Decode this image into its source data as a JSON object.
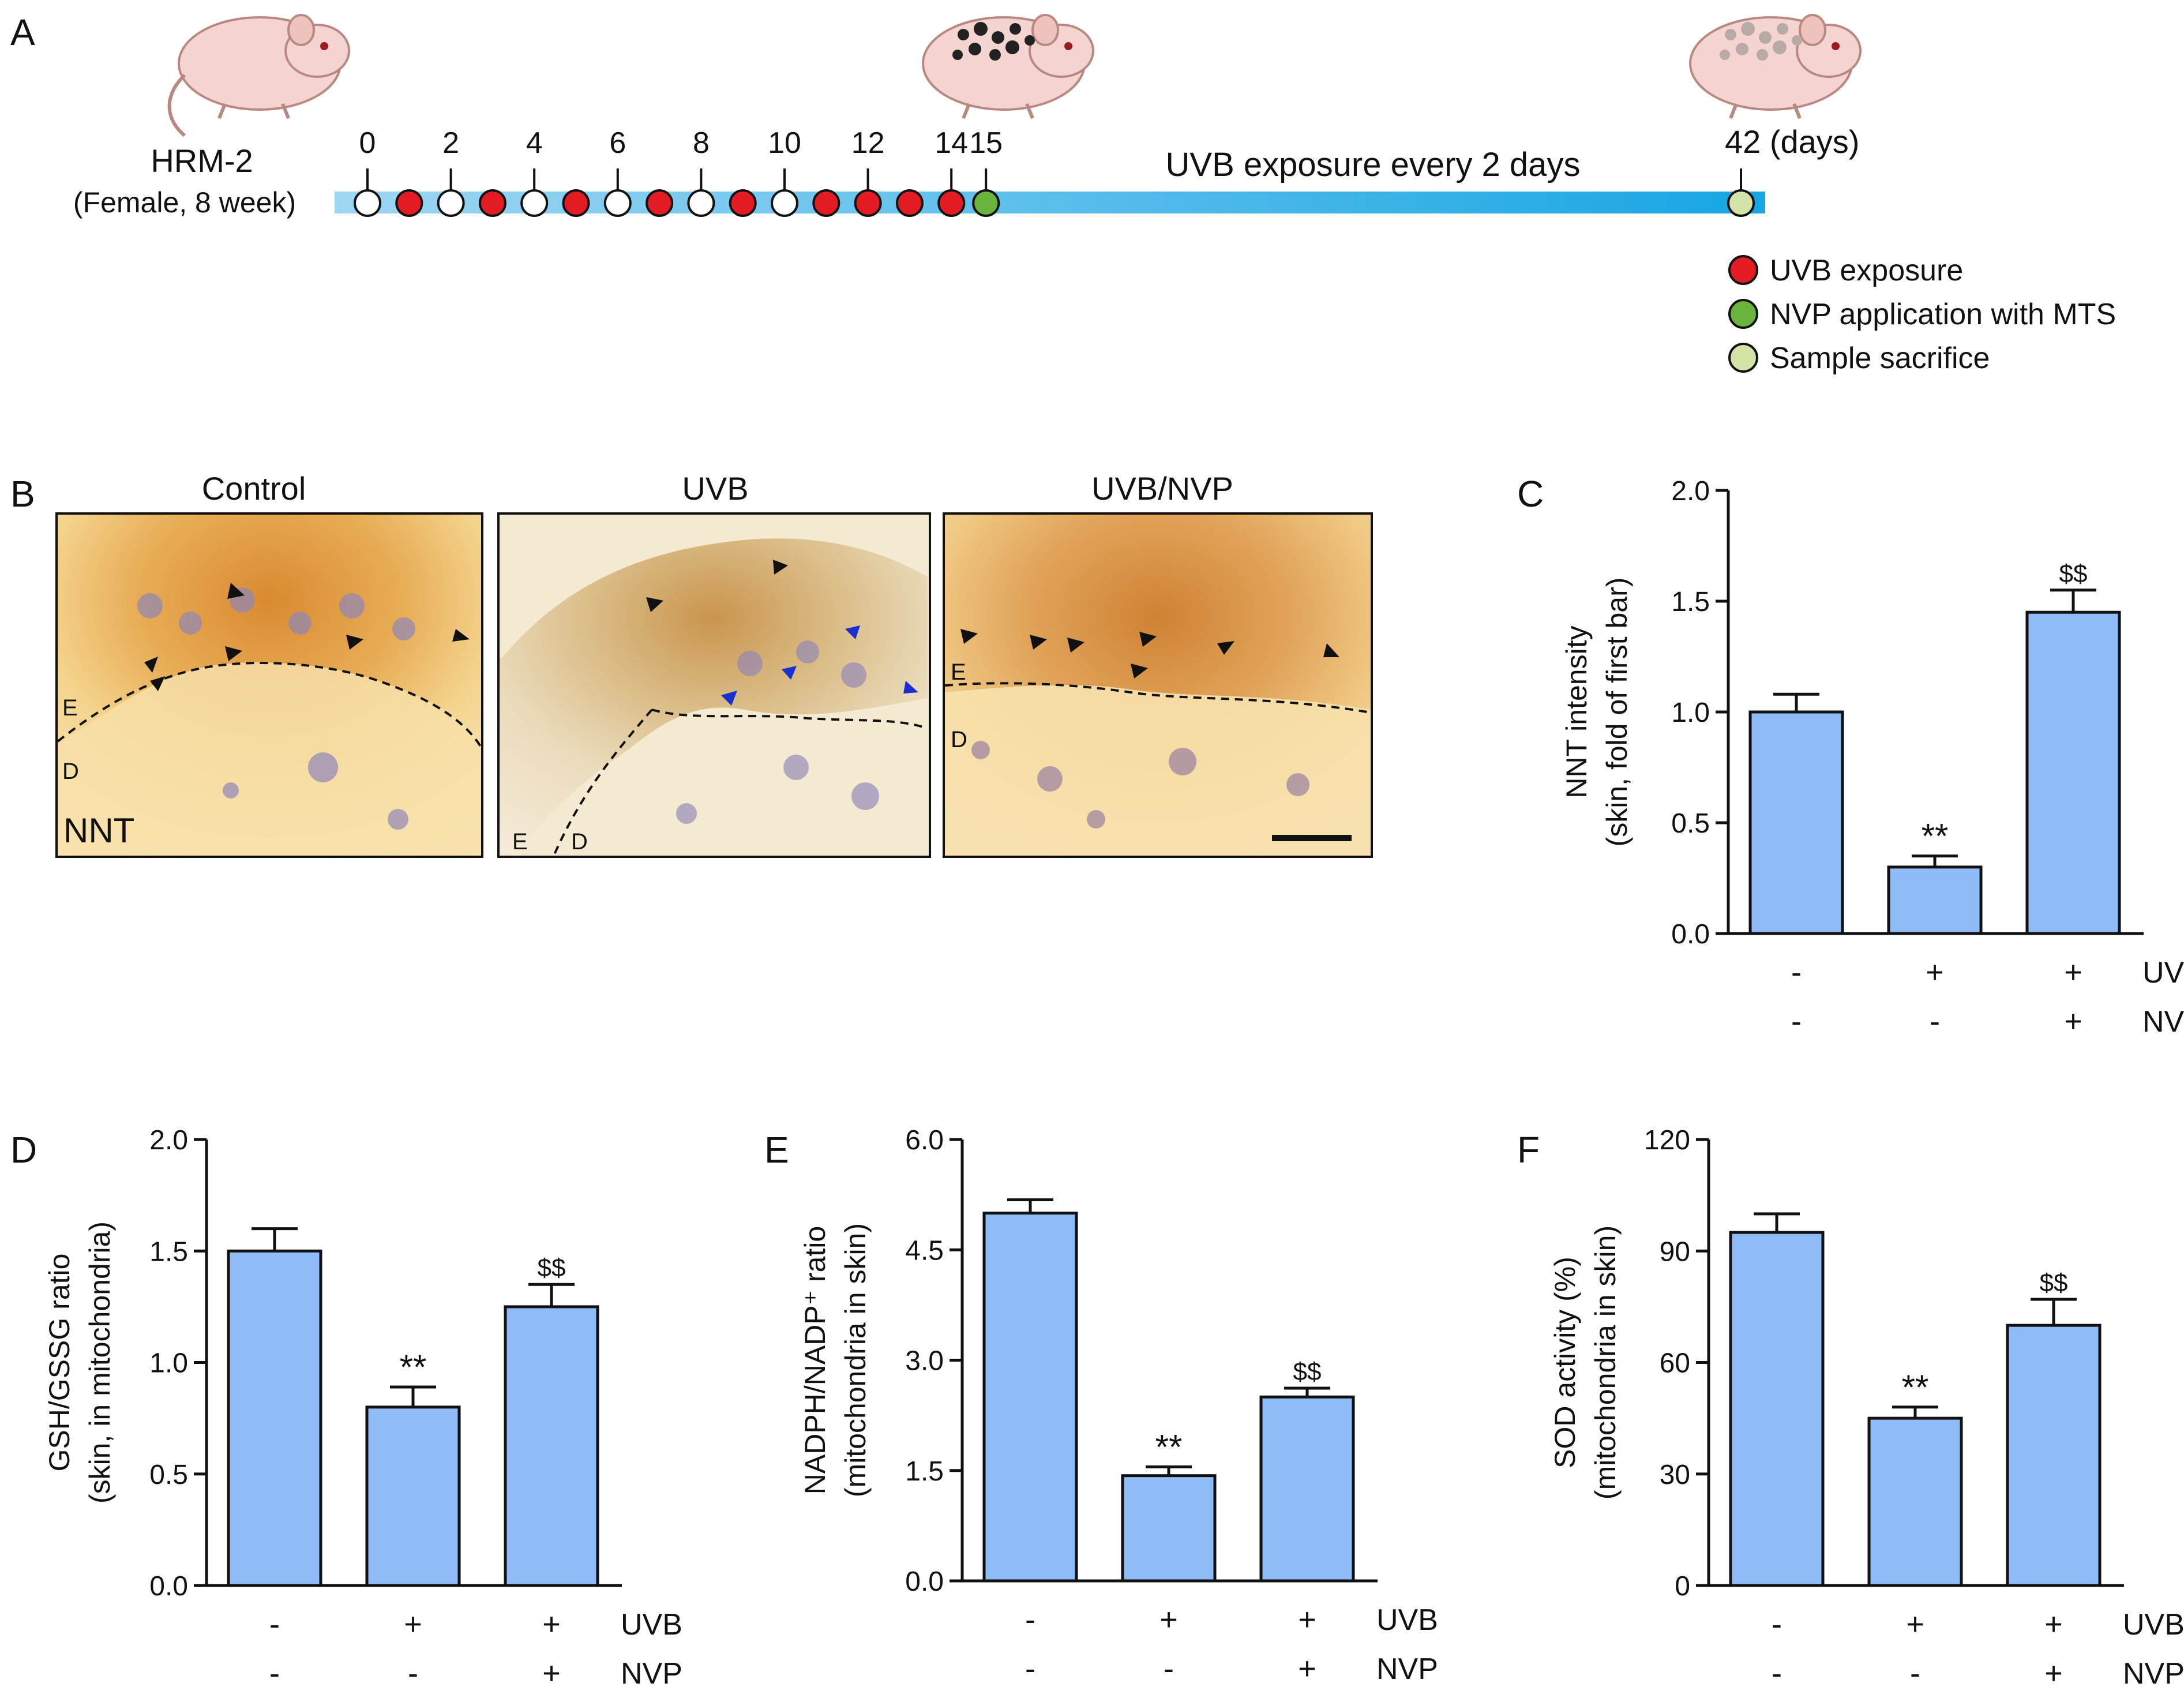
{
  "panel_labels": {
    "A": "A",
    "B": "B",
    "C": "C",
    "D": "D",
    "E": "E",
    "F": "F"
  },
  "timeline": {
    "strain": "HRM-2",
    "strain_detail": "(Female, 8 week)",
    "day_ticks": [
      "0",
      "2",
      "4",
      "6",
      "8",
      "10",
      "12",
      "14",
      "15"
    ],
    "end_day": "42 (days)",
    "exposure_note": "UVB exposure every 2 days",
    "legend": [
      {
        "label": "UVB exposure",
        "color": "#e31b23"
      },
      {
        "label": "NVP application with MTS",
        "color": "#6ab33c"
      },
      {
        "label": "Sample sacrifice",
        "color": "#d3e3a8"
      }
    ],
    "bar_color": "#29abe2"
  },
  "histology": {
    "titles": [
      "Control",
      "UVB",
      "UVB/NVP"
    ],
    "stain": "NNT",
    "layer_epidermis": "E",
    "layer_dermis": "D"
  },
  "treatment_rows": {
    "uvb": [
      "-",
      "+",
      "+"
    ],
    "nvp": [
      "-",
      "-",
      "+"
    ],
    "uvb_label": "UVB",
    "nvp_label": "NVP"
  },
  "bar_fill": "#8fbcf7",
  "chart_data": [
    {
      "id": "C",
      "type": "bar",
      "categories": [
        "Control",
        "UVB",
        "UVB/NVP"
      ],
      "values": [
        1.0,
        0.3,
        1.45
      ],
      "errors": [
        0.08,
        0.05,
        0.1
      ],
      "significance": [
        "",
        "**",
        "$$"
      ],
      "ylabel": "NNT intensity",
      "ylabel2": "(skin, fold of first bar)",
      "ylim": [
        0,
        2.0
      ],
      "ticks": [
        "0.0",
        "0.5",
        "1.0",
        "1.5",
        "2.0"
      ]
    },
    {
      "id": "D",
      "type": "bar",
      "categories": [
        "Control",
        "UVB",
        "UVB/NVP"
      ],
      "values": [
        1.5,
        0.8,
        1.25
      ],
      "errors": [
        0.1,
        0.09,
        0.1
      ],
      "significance": [
        "",
        "**",
        "$$"
      ],
      "ylabel": "GSH/GSSG ratio",
      "ylabel2": "(skin, in mitochondria)",
      "ylim": [
        0,
        2.0
      ],
      "ticks": [
        "0.0",
        "0.5",
        "1.0",
        "1.5",
        "2.0"
      ]
    },
    {
      "id": "E",
      "type": "bar",
      "categories": [
        "Control",
        "UVB",
        "UVB/NVP"
      ],
      "values": [
        5.0,
        1.43,
        2.5
      ],
      "errors": [
        0.18,
        0.12,
        0.12
      ],
      "significance": [
        "",
        "**",
        "$$"
      ],
      "ylabel": "NADPH/NADP⁺ ratio",
      "ylabel2": "(mitochondria in skin)",
      "ylim": [
        0,
        6.0
      ],
      "ticks": [
        "0.0",
        "1.5",
        "3.0",
        "4.5",
        "6.0"
      ]
    },
    {
      "id": "F",
      "type": "bar",
      "categories": [
        "Control",
        "UVB",
        "UVB/NVP"
      ],
      "values": [
        95,
        45,
        70
      ],
      "errors": [
        5,
        3,
        7
      ],
      "significance": [
        "",
        "**",
        "$$"
      ],
      "ylabel": "SOD activity (%)",
      "ylabel2": "(mitochondria in skin)",
      "ylim": [
        0,
        120
      ],
      "ticks": [
        "0",
        "30",
        "60",
        "90",
        "120"
      ]
    }
  ]
}
